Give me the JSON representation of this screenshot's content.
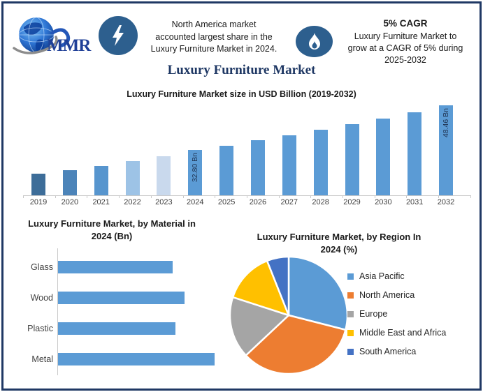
{
  "page": {
    "title": "Luxury Furniture Market"
  },
  "header": {
    "logo_text": "MMR",
    "na_lines": [
      "North America market",
      "accounted largest share in the",
      "Luxury Furniture Market in 2024."
    ],
    "cagr_title": "5% CAGR",
    "cagr_lines": [
      "Luxury Furniture Market to",
      "grow at a CAGR of 5% during",
      "2025-2032"
    ]
  },
  "colors": {
    "navy": "#1F3864",
    "icon_circle": "#2D5F8E",
    "axis_gray": "#C9C9C9",
    "bar_blue": "#5B9BD5"
  },
  "chart_data": [
    {
      "type": "bar",
      "title": "Luxury Furniture Market size in USD Billion (2019-2032)",
      "categories": [
        "2019",
        "2020",
        "2021",
        "2022",
        "2023",
        "2024",
        "2025",
        "2026",
        "2027",
        "2028",
        "2029",
        "2030",
        "2031",
        "2032"
      ],
      "values": [
        24.5,
        25.9,
        27.3,
        29.0,
        30.6,
        32.8,
        34.4,
        36.2,
        38.0,
        39.9,
        41.9,
        44.0,
        46.2,
        48.46
      ],
      "data_labels": [
        "",
        "",
        "",
        "",
        "",
        "32.80 Bn",
        "",
        "",
        "",
        "",
        "",
        "",
        "",
        "48.46 Bn"
      ],
      "bar_colors": [
        "#3D6D99",
        "#4C84B9",
        "#5795CE",
        "#9DC3E6",
        "#C9D9ED",
        "#5B9BD5",
        "#5B9BD5",
        "#5B9BD5",
        "#5B9BD5",
        "#5B9BD5",
        "#5B9BD5",
        "#5B9BD5",
        "#5B9BD5",
        "#5B9BD5"
      ],
      "ylabel": "USD Billion",
      "ylim": [
        17,
        50
      ],
      "grid": false
    },
    {
      "type": "bar-horizontal",
      "title_line1": "Luxury Furniture Market, by Material in",
      "title_line2": "2024 (Bn)",
      "categories": [
        "Glass",
        "Wood",
        "Plastic",
        "Metal"
      ],
      "values": [
        7.3,
        8.1,
        7.5,
        10.0
      ],
      "bar_color": "#5B9BD5",
      "xlim": [
        0,
        11
      ],
      "grid": false
    },
    {
      "type": "pie",
      "title_line1": "Luxury Furniture Market, by Region In",
      "title_line2": "2024 (%)",
      "slices": [
        {
          "label": "Asia Pacific",
          "value": 29,
          "color": "#5B9BD5"
        },
        {
          "label": "North America",
          "value": 34,
          "color": "#ED7D31"
        },
        {
          "label": "Europe",
          "value": 17,
          "color": "#A5A5A5"
        },
        {
          "label": "Middle East and Africa",
          "value": 14,
          "color": "#FFC000"
        },
        {
          "label": "South America",
          "value": 6,
          "color": "#4472C4"
        }
      ],
      "legend_position": "right",
      "start_angle_deg": 0
    }
  ]
}
